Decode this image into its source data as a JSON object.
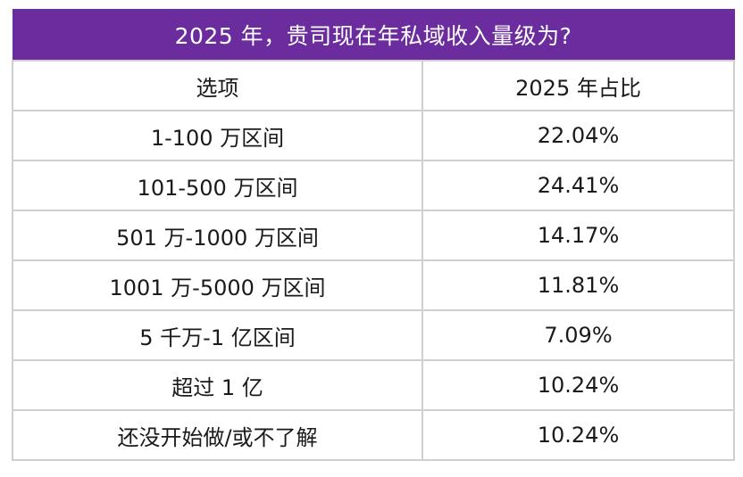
{
  "table": {
    "title": "2025 年，贵司现在年私域收入量级为?",
    "header_color": "#6b2c9e",
    "columns": [
      "选项",
      "2025 年占比"
    ],
    "rows": [
      {
        "option": "1-100 万区间",
        "share": "22.04%"
      },
      {
        "option": "101-500 万区间",
        "share": "24.41%"
      },
      {
        "option": "501 万-1000 万区间",
        "share": "14.17%"
      },
      {
        "option": "1001 万-5000 万区间",
        "share": "11.81%"
      },
      {
        "option": "5 千万-1 亿区间",
        "share": "7.09%"
      },
      {
        "option": "超过 1 亿",
        "share": "10.24%"
      },
      {
        "option": "还没开始做/或不了解",
        "share": "10.24%"
      }
    ]
  }
}
